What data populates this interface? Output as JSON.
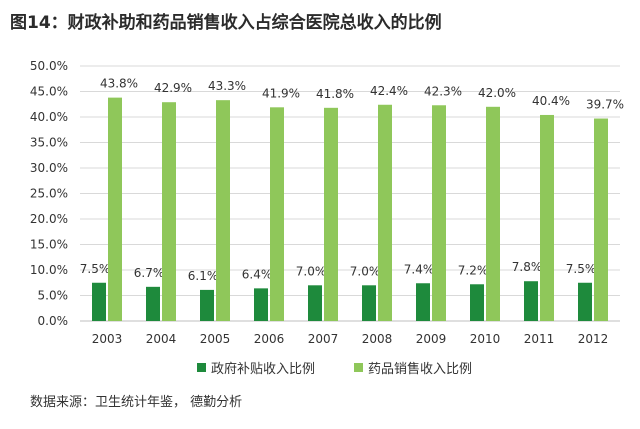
{
  "title": "图14：财政补助和药品销售收入占综合医院总收入的比例",
  "source": "数据来源：卫生统计年鉴， 德勤分析",
  "colors": {
    "subsidy": "#1e8a3c",
    "drug": "#8fc75a",
    "grid": "#d9d9d9",
    "axis": "#bfbfbf"
  },
  "chart_data": {
    "type": "bar",
    "title": "图14：财政补助和药品销售收入占综合医院总收入的比例",
    "xlabel": "",
    "ylabel": "",
    "categories": [
      "2003",
      "2004",
      "2005",
      "2006",
      "2007",
      "2008",
      "2009",
      "2010",
      "2011",
      "2012"
    ],
    "series": [
      {
        "name": "政府补贴收入比例",
        "values": [
          7.5,
          6.7,
          6.1,
          6.4,
          7.0,
          7.0,
          7.4,
          7.2,
          7.8,
          7.5
        ],
        "labels": [
          "7.5%",
          "6.7%",
          "6.1%",
          "6.4%",
          "7.0%",
          "7.0%",
          "7.4%",
          "7.2%",
          "7.8%",
          "7.5%"
        ]
      },
      {
        "name": "药品销售收入比例",
        "values": [
          43.8,
          42.9,
          43.3,
          41.9,
          41.8,
          42.4,
          42.3,
          42.0,
          40.4,
          39.7
        ],
        "labels": [
          "43.8%",
          "42.9%",
          "43.3%",
          "41.9%",
          "41.8%",
          "42.4%",
          "42.3%",
          "42.0%",
          "40.4%",
          "39.7%"
        ]
      }
    ],
    "ylim": [
      0,
      50
    ],
    "yticks": [
      "0.0%",
      "5.0%",
      "10.0%",
      "15.0%",
      "20.0%",
      "25.0%",
      "30.0%",
      "35.0%",
      "40.0%",
      "45.0%",
      "50.0%"
    ],
    "grid": true,
    "legend": "bottom"
  }
}
